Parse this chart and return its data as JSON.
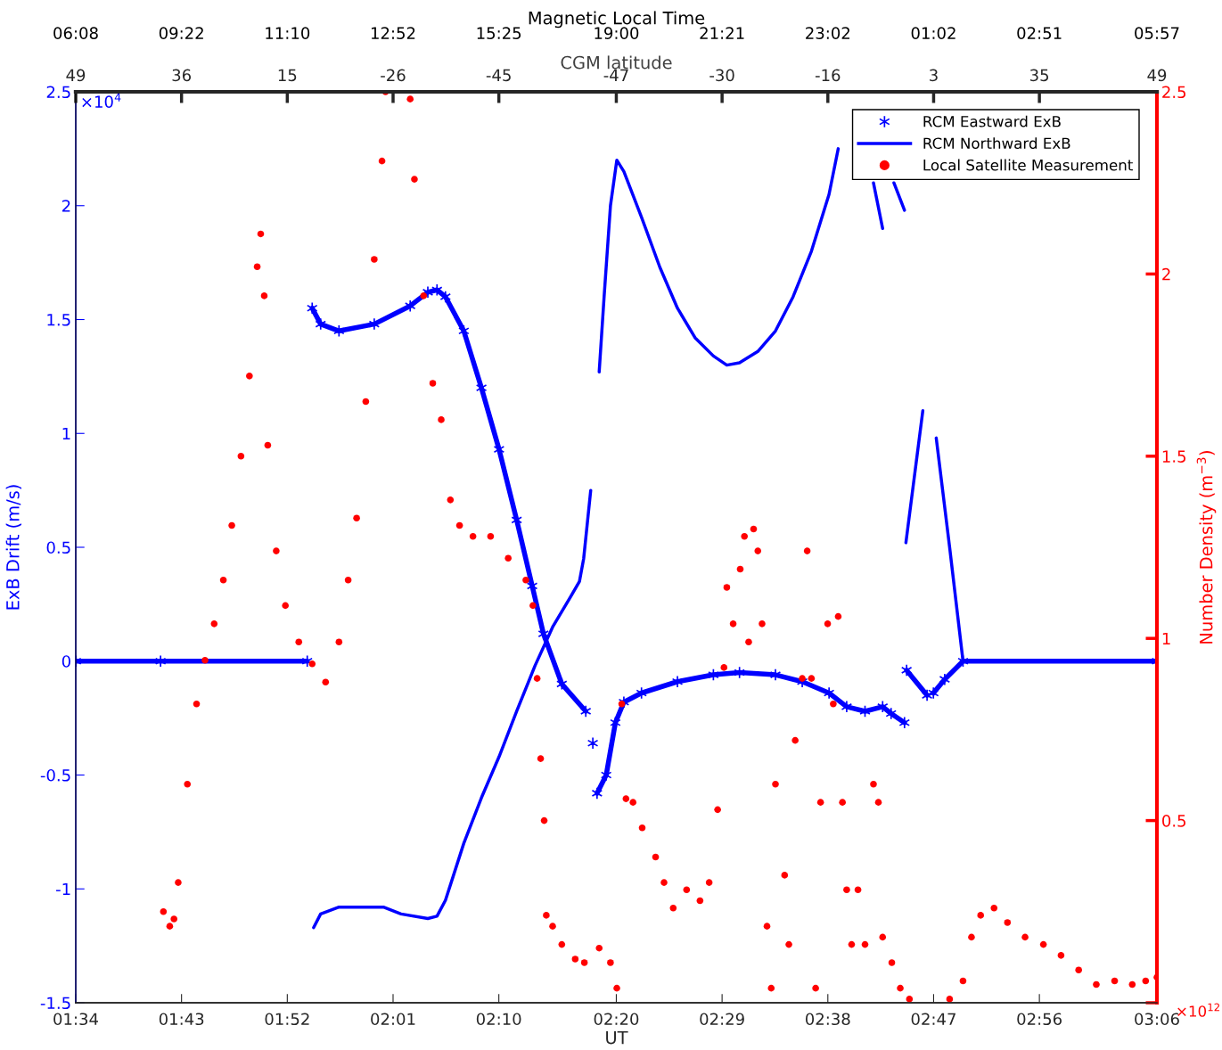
{
  "chart_data": {
    "type": "line",
    "xlabel": "UT",
    "ylabel": "ExB Drift (m/s)",
    "y2label": "Number Density (m$^{−3}$)",
    "xlim": [
      1.5667,
      3.1
    ],
    "xticks": [
      {
        "value": 1.5667,
        "label": "01:34"
      },
      {
        "value": 1.7167,
        "label": "01:43"
      },
      {
        "value": 1.8667,
        "label": "01:52"
      },
      {
        "value": 2.0167,
        "label": "02:01"
      },
      {
        "value": 2.1667,
        "label": "02:10"
      },
      {
        "value": 2.3333,
        "label": "02:20"
      },
      {
        "value": 2.4833,
        "label": "02:29"
      },
      {
        "value": 2.6333,
        "label": "02:38"
      },
      {
        "value": 2.7833,
        "label": "02:47"
      },
      {
        "value": 2.9333,
        "label": "02:56"
      },
      {
        "value": 3.1,
        "label": "03:06"
      }
    ],
    "ylim": [
      -1.5,
      2.5
    ],
    "yticks": [
      -1.5,
      -1,
      -0.5,
      0,
      0.5,
      1,
      1.5,
      2,
      2.5
    ],
    "y2lim": [
      0,
      2.5
    ],
    "y2ticks": [
      {
        "value": 0,
        "label": null
      },
      0.5,
      1,
      1.5,
      2,
      2.5
    ],
    "annotations": [
      "×10$^{4}$",
      "×10$^{12}$",
      "Magnetic Local Time",
      "CGM latitude",
      "06:08",
      "09:22",
      "11:10",
      "12:52",
      "15:25",
      "19:00",
      "21:21",
      "23:02",
      "01:02",
      "02:51",
      "05:57",
      "49",
      "36",
      "15",
      "-26",
      "-45",
      "-47",
      "-30",
      "-16",
      "3",
      "35",
      "49"
    ],
    "legend": "top right",
    "grid": false,
    "series": [
      {
        "name": "RCM Eastward ExB",
        "marker": "cross",
        "line_style": "solid",
        "color": "#0000ff",
        "x": [
          1.567,
          1.687,
          1.895,
          1.898,
          1.902,
          1.914,
          1.94,
          1.99,
          2.041,
          2.066,
          2.079,
          2.091,
          2.117,
          2.142,
          2.167,
          2.192,
          2.214,
          2.23,
          2.256,
          2.29,
          2.294,
          2.3,
          2.302,
          2.306,
          2.319,
          2.332,
          2.344,
          2.369,
          2.42,
          2.471,
          2.508,
          2.559,
          2.597,
          2.635,
          2.66,
          2.686,
          2.711,
          2.723,
          2.742,
          2.744,
          2.745,
          2.774,
          2.777,
          2.783,
          2.799,
          2.825,
          3.1
        ],
        "values": [
          0,
          0,
          0,
          null,
          1.55,
          1.48,
          1.45,
          1.48,
          1.56,
          1.62,
          1.63,
          1.6,
          1.45,
          1.2,
          0.93,
          0.62,
          0.33,
          0.12,
          -0.1,
          -0.22,
          null,
          -0.36,
          null,
          -0.58,
          -0.5,
          -0.27,
          -0.18,
          -0.14,
          -0.09,
          -0.06,
          -0.05,
          -0.06,
          -0.09,
          -0.14,
          -0.2,
          -0.22,
          -0.2,
          -0.23,
          -0.27,
          null,
          -0.04,
          -0.15,
          null,
          -0.14,
          -0.08,
          0,
          0
        ]
      },
      {
        "name": "RCM Northward ExB",
        "marker": "none",
        "line_style": "solid",
        "color": "#0000ff",
        "x": [
          1.904,
          1.914,
          1.94,
          2.003,
          2.028,
          2.066,
          2.079,
          2.091,
          2.117,
          2.142,
          2.167,
          2.192,
          2.218,
          2.243,
          2.268,
          2.281,
          2.287,
          2.297,
          2.302,
          2.309,
          2.316,
          2.325,
          2.334,
          2.344,
          2.369,
          2.395,
          2.42,
          2.445,
          2.471,
          2.49,
          2.508,
          2.534,
          2.559,
          2.584,
          2.61,
          2.635,
          2.648,
          2.673,
          2.698,
          2.711,
          2.717,
          2.727,
          2.742,
          2.743,
          2.744,
          2.768,
          2.777,
          2.787,
          2.806,
          2.825
        ],
        "values": [
          -1.17,
          -1.11,
          -1.08,
          -1.08,
          -1.11,
          -1.13,
          -1.12,
          -1.05,
          -0.8,
          -0.6,
          -0.42,
          -0.22,
          -0.02,
          0.15,
          0.28,
          0.35,
          0.45,
          0.75,
          null,
          1.27,
          1.6,
          2.0,
          2.2,
          2.15,
          1.95,
          1.73,
          1.55,
          1.42,
          1.34,
          1.3,
          1.31,
          1.36,
          1.45,
          1.6,
          1.8,
          2.05,
          2.25,
          null,
          2.1,
          1.9,
          null,
          2.1,
          1.98,
          null,
          0.52,
          1.1,
          null,
          0.98,
          0.5,
          0
        ]
      },
      {
        "name": "Local Satellite Measurement",
        "type": "scatter",
        "marker": "circle",
        "color": "#ff0000",
        "axis": "y2",
        "x": [
          1.691,
          1.7,
          1.706,
          1.712,
          1.725,
          1.738,
          1.75,
          1.763,
          1.776,
          1.788,
          1.801,
          1.813,
          1.824,
          1.829,
          1.834,
          1.839,
          1.851,
          1.864,
          1.883,
          1.902,
          1.921,
          1.94,
          1.953,
          1.965,
          1.978,
          1.99,
          2.001,
          2.006,
          2.041,
          2.047,
          2.06,
          2.073,
          2.085,
          2.098,
          2.111,
          2.13,
          2.155,
          2.18,
          2.205,
          2.215,
          2.221,
          2.226,
          2.231,
          2.234,
          2.243,
          2.256,
          2.275,
          2.288,
          2.309,
          2.325,
          2.334,
          2.341,
          2.347,
          2.357,
          2.37,
          2.389,
          2.401,
          2.414,
          2.433,
          2.452,
          2.465,
          2.477,
          2.486,
          2.49,
          2.499,
          2.509,
          2.515,
          2.521,
          2.528,
          2.534,
          2.54,
          2.547,
          2.553,
          2.559,
          2.572,
          2.578,
          2.587,
          2.597,
          2.604,
          2.61,
          2.616,
          2.623,
          2.633,
          2.641,
          2.648,
          2.654,
          2.66,
          2.667,
          2.676,
          2.686,
          2.698,
          2.705,
          2.711,
          2.724,
          2.736,
          2.749,
          2.806,
          2.825,
          2.837,
          2.85,
          2.869,
          2.888,
          2.913,
          2.939,
          2.964,
          2.989,
          3.014,
          3.04,
          3.065,
          3.084,
          3.1
        ],
        "values": [
          0.25,
          0.21,
          0.23,
          0.33,
          0.6,
          0.82,
          0.94,
          1.04,
          1.16,
          1.31,
          1.5,
          1.72,
          2.02,
          2.11,
          1.94,
          1.53,
          1.24,
          1.09,
          0.99,
          0.93,
          0.88,
          0.99,
          1.16,
          1.33,
          1.65,
          2.04,
          2.31,
          2.5,
          2.48,
          2.26,
          1.94,
          1.7,
          1.6,
          1.38,
          1.31,
          1.28,
          1.28,
          1.22,
          1.16,
          1.09,
          0.89,
          0.67,
          0.5,
          0.24,
          0.21,
          0.16,
          0.12,
          0.11,
          0.15,
          0.11,
          0.04,
          0.82,
          0.56,
          0.55,
          0.48,
          0.4,
          0.33,
          0.26,
          0.31,
          0.28,
          0.33,
          0.53,
          0.92,
          1.14,
          1.04,
          1.19,
          1.28,
          0.99,
          1.3,
          1.24,
          1.04,
          0.21,
          0.04,
          0.6,
          0.35,
          0.16,
          0.72,
          0.89,
          1.24,
          0.89,
          0.04,
          0.55,
          1.04,
          0.82,
          1.06,
          0.55,
          0.31,
          0.16,
          0.31,
          0.16,
          0.6,
          0.55,
          0.18,
          0.11,
          0.04,
          0.01,
          0.01,
          0.06,
          0.18,
          0.24,
          0.26,
          0.22,
          0.18,
          0.16,
          0.13,
          0.09,
          0.05,
          0.06,
          0.05,
          0.06,
          0.07
        ]
      }
    ]
  }
}
